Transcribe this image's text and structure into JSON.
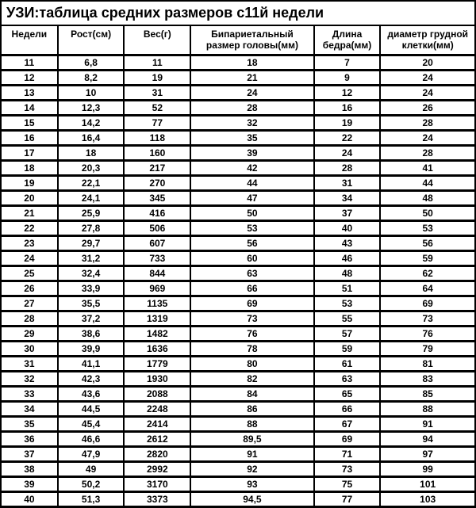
{
  "title": "УЗИ:таблица средних размеров с11й недели",
  "table": {
    "type": "table",
    "background_color": "#ffffff",
    "border_color": "#000000",
    "text_color": "#000000",
    "header_fontsize": 12,
    "cell_fontsize": 12,
    "font_weight": "bold",
    "columns": [
      "Недели",
      "Рост(см)",
      "Вес(г)",
      "Бипариетальный размер головы(мм)",
      "Длина бедра(мм)",
      "диаметр грудной клетки(мм)"
    ],
    "rows": [
      [
        "11",
        "6,8",
        "11",
        "18",
        "7",
        "20"
      ],
      [
        "12",
        "8,2",
        "19",
        "21",
        "9",
        "24"
      ],
      [
        "13",
        "10",
        "31",
        "24",
        "12",
        "24"
      ],
      [
        "14",
        "12,3",
        "52",
        "28",
        "16",
        "26"
      ],
      [
        "15",
        "14,2",
        "77",
        "32",
        "19",
        "28"
      ],
      [
        "16",
        "16,4",
        "118",
        "35",
        "22",
        "24"
      ],
      [
        "17",
        "18",
        "160",
        "39",
        "24",
        "28"
      ],
      [
        "18",
        "20,3",
        "217",
        "42",
        "28",
        "41"
      ],
      [
        "19",
        "22,1",
        "270",
        "44",
        "31",
        "44"
      ],
      [
        "20",
        "24,1",
        "345",
        "47",
        "34",
        "48"
      ],
      [
        "21",
        "25,9",
        "416",
        "50",
        "37",
        "50"
      ],
      [
        "22",
        "27,8",
        "506",
        "53",
        "40",
        "53"
      ],
      [
        "23",
        "29,7",
        "607",
        "56",
        "43",
        "56"
      ],
      [
        "24",
        "31,2",
        "733",
        "60",
        "46",
        "59"
      ],
      [
        "25",
        "32,4",
        "844",
        "63",
        "48",
        "62"
      ],
      [
        "26",
        "33,9",
        "969",
        "66",
        "51",
        "64"
      ],
      [
        "27",
        "35,5",
        "1135",
        "69",
        "53",
        "69"
      ],
      [
        "28",
        "37,2",
        "1319",
        "73",
        "55",
        "73"
      ],
      [
        "29",
        "38,6",
        "1482",
        "76",
        "57",
        "76"
      ],
      [
        "30",
        "39,9",
        "1636",
        "78",
        "59",
        "79"
      ],
      [
        "31",
        "41,1",
        "1779",
        "80",
        "61",
        "81"
      ],
      [
        "32",
        "42,3",
        "1930",
        "82",
        "63",
        "83"
      ],
      [
        "33",
        "43,6",
        "2088",
        "84",
        "65",
        "85"
      ],
      [
        "34",
        "44,5",
        "2248",
        "86",
        "66",
        "88"
      ],
      [
        "35",
        "45,4",
        "2414",
        "88",
        "67",
        "91"
      ],
      [
        "36",
        "46,6",
        "2612",
        "89,5",
        "69",
        "94"
      ],
      [
        "37",
        "47,9",
        "2820",
        "91",
        "71",
        "97"
      ],
      [
        "38",
        "49",
        "2992",
        "92",
        "73",
        "99"
      ],
      [
        "39",
        "50,2",
        "3170",
        "93",
        "75",
        "101"
      ],
      [
        "40",
        "51,3",
        "3373",
        "94,5",
        "77",
        "103"
      ]
    ]
  }
}
